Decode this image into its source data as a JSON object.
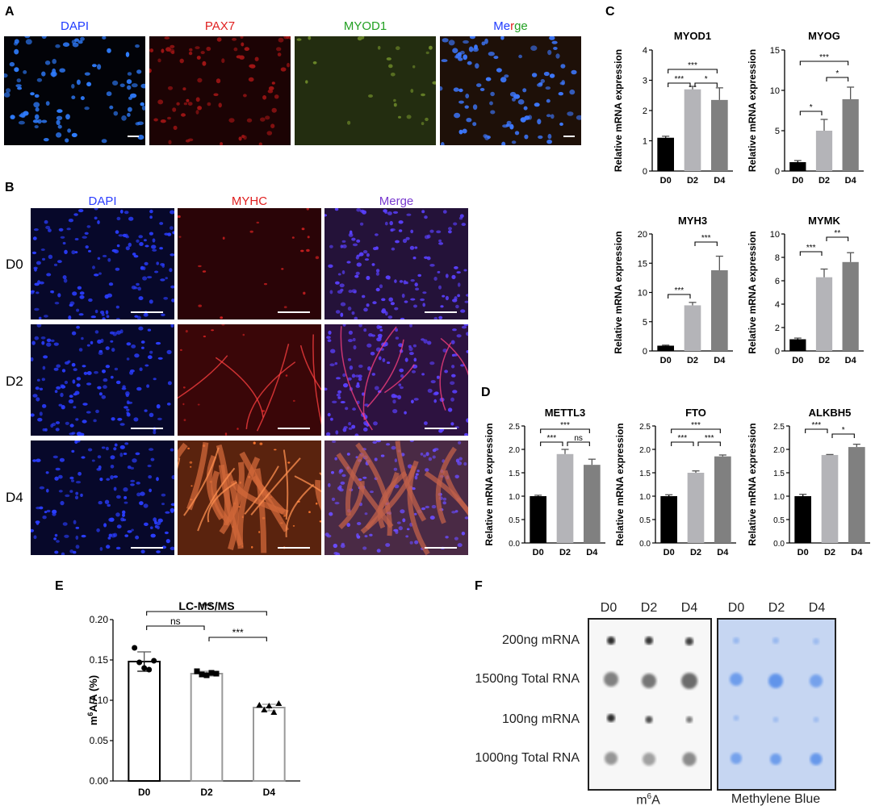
{
  "panels": {
    "A": "A",
    "B": "B",
    "C": "C",
    "D": "D",
    "E": "E",
    "F": "F"
  },
  "panelA": {
    "labels": [
      "DAPI",
      "PAX7",
      "MYOD1"
    ],
    "merge_parts": [
      "Me",
      "r",
      "ge"
    ],
    "colors": {
      "dapi": "#1f3bff",
      "pax7": "#e02020",
      "myod1": "#22a022"
    }
  },
  "panelB": {
    "column_labels": [
      "DAPI",
      "MYHC",
      "Merge"
    ],
    "row_labels": [
      "D0",
      "D2",
      "D4"
    ],
    "colors": {
      "dapi": "#2a3cff",
      "myhc": "#e02020",
      "merge": "#7a3bd0"
    }
  },
  "chart_data": [
    {
      "type": "bar",
      "title": "MYOD1",
      "ylabel": "Relative mRNA expression",
      "categories": [
        "D0",
        "D2",
        "D4"
      ],
      "values": [
        1.1,
        2.7,
        2.35
      ],
      "errors": [
        0.05,
        0.1,
        0.4
      ],
      "ylim": [
        0,
        4
      ],
      "yticks": [
        "0",
        "1",
        "2",
        "3",
        "4"
      ],
      "sig": [
        {
          "from": 0,
          "to": 1,
          "label": "***"
        },
        {
          "from": 1,
          "to": 2,
          "label": "*"
        },
        {
          "from": 0,
          "to": 2,
          "label": "***"
        }
      ]
    },
    {
      "type": "bar",
      "title": "MYOG",
      "ylabel": "Relative mRNA expression",
      "categories": [
        "D0",
        "D2",
        "D4"
      ],
      "values": [
        1.1,
        5.0,
        8.9
      ],
      "errors": [
        0.2,
        1.4,
        1.5
      ],
      "ylim": [
        0,
        15
      ],
      "yticks": [
        "0",
        "5",
        "10",
        "15"
      ],
      "sig": [
        {
          "from": 0,
          "to": 1,
          "label": "*"
        },
        {
          "from": 1,
          "to": 2,
          "label": "*"
        },
        {
          "from": 0,
          "to": 2,
          "label": "***"
        }
      ]
    },
    {
      "type": "bar",
      "title": "MYH3",
      "ylabel": "Relative mRNA expression",
      "categories": [
        "D0",
        "D2",
        "D4"
      ],
      "values": [
        0.9,
        7.8,
        13.8
      ],
      "errors": [
        0.1,
        0.5,
        2.4
      ],
      "ylim": [
        0,
        20
      ],
      "yticks": [
        "0",
        "5",
        "10",
        "15",
        "20"
      ],
      "sig": [
        {
          "from": 0,
          "to": 1,
          "label": "***"
        },
        {
          "from": 1,
          "to": 2,
          "label": "***"
        }
      ]
    },
    {
      "type": "bar",
      "title": "MYMK",
      "ylabel": "Relative mRNA expression",
      "categories": [
        "D0",
        "D2",
        "D4"
      ],
      "values": [
        1.0,
        6.3,
        7.6
      ],
      "errors": [
        0.1,
        0.7,
        0.8
      ],
      "ylim": [
        0,
        10
      ],
      "yticks": [
        "0",
        "2",
        "4",
        "6",
        "8",
        "10"
      ],
      "sig": [
        {
          "from": 0,
          "to": 1,
          "label": "***"
        },
        {
          "from": 1,
          "to": 2,
          "label": "**"
        }
      ]
    },
    {
      "type": "bar",
      "title": "METTL3",
      "ylabel": "Relative mRNA expression",
      "categories": [
        "D0",
        "D2",
        "D4"
      ],
      "values": [
        1.0,
        1.9,
        1.67
      ],
      "errors": [
        0.02,
        0.1,
        0.12
      ],
      "ylim": [
        0,
        2.5
      ],
      "yticks": [
        "0.0",
        "0.5",
        "1.0",
        "1.5",
        "2.0",
        "2.5"
      ],
      "sig": [
        {
          "from": 0,
          "to": 1,
          "label": "***"
        },
        {
          "from": 1,
          "to": 2,
          "label": "ns"
        },
        {
          "from": 0,
          "to": 2,
          "label": "***"
        }
      ]
    },
    {
      "type": "bar",
      "title": "FTO",
      "ylabel": "Relative mRNA expression",
      "categories": [
        "D0",
        "D2",
        "D4"
      ],
      "values": [
        1.0,
        1.5,
        1.85
      ],
      "errors": [
        0.03,
        0.04,
        0.03
      ],
      "ylim": [
        0,
        2.5
      ],
      "yticks": [
        "0.0",
        "0.5",
        "1.0",
        "1.5",
        "2.0",
        "2.5"
      ],
      "sig": [
        {
          "from": 0,
          "to": 1,
          "label": "***"
        },
        {
          "from": 1,
          "to": 2,
          "label": "***"
        },
        {
          "from": 0,
          "to": 2,
          "label": "***"
        }
      ]
    },
    {
      "type": "bar",
      "title": "ALKBH5",
      "ylabel": "Relative mRNA expression",
      "categories": [
        "D0",
        "D2",
        "D4"
      ],
      "values": [
        1.0,
        1.88,
        2.05
      ],
      "errors": [
        0.04,
        0.01,
        0.06
      ],
      "ylim": [
        0,
        2.5
      ],
      "yticks": [
        "0.0",
        "0.5",
        "1.0",
        "1.5",
        "2.0",
        "2.5"
      ],
      "sig": [
        {
          "from": 0,
          "to": 1,
          "label": "***"
        },
        {
          "from": 1,
          "to": 2,
          "label": "*"
        }
      ]
    },
    {
      "type": "bar",
      "title": "LC-MS/MS",
      "ylabel": "m6A/A (%)",
      "categories": [
        "D0",
        "D2",
        "D4"
      ],
      "values": [
        0.148,
        0.133,
        0.091
      ],
      "errors": [
        0.012,
        0.003,
        0.004
      ],
      "ylim": [
        0,
        0.2
      ],
      "yticks": [
        "0.00",
        "0.05",
        "0.10",
        "0.15",
        "0.20"
      ],
      "points": [
        [
          0.165,
          0.147,
          0.14,
          0.138,
          0.149
        ],
        [
          0.136,
          0.132,
          0.131,
          0.134,
          0.133
        ],
        [
          0.094,
          0.088,
          0.093,
          0.085,
          0.096
        ]
      ],
      "sig": [
        {
          "from": 0,
          "to": 1,
          "label": "ns"
        },
        {
          "from": 1,
          "to": 2,
          "label": "***"
        },
        {
          "from": 0,
          "to": 2,
          "label": "***"
        }
      ]
    }
  ],
  "panelF": {
    "columns": [
      "D0",
      "D2",
      "D4"
    ],
    "rows": [
      "200ng mRNA",
      "1500ng Total RNA",
      "100ng mRNA",
      "1000ng Total RNA"
    ],
    "caption_m6a": "m",
    "caption_m6a_sup": "6",
    "caption_m6a_rest": "A",
    "caption_mb": "Methylene Blue"
  }
}
